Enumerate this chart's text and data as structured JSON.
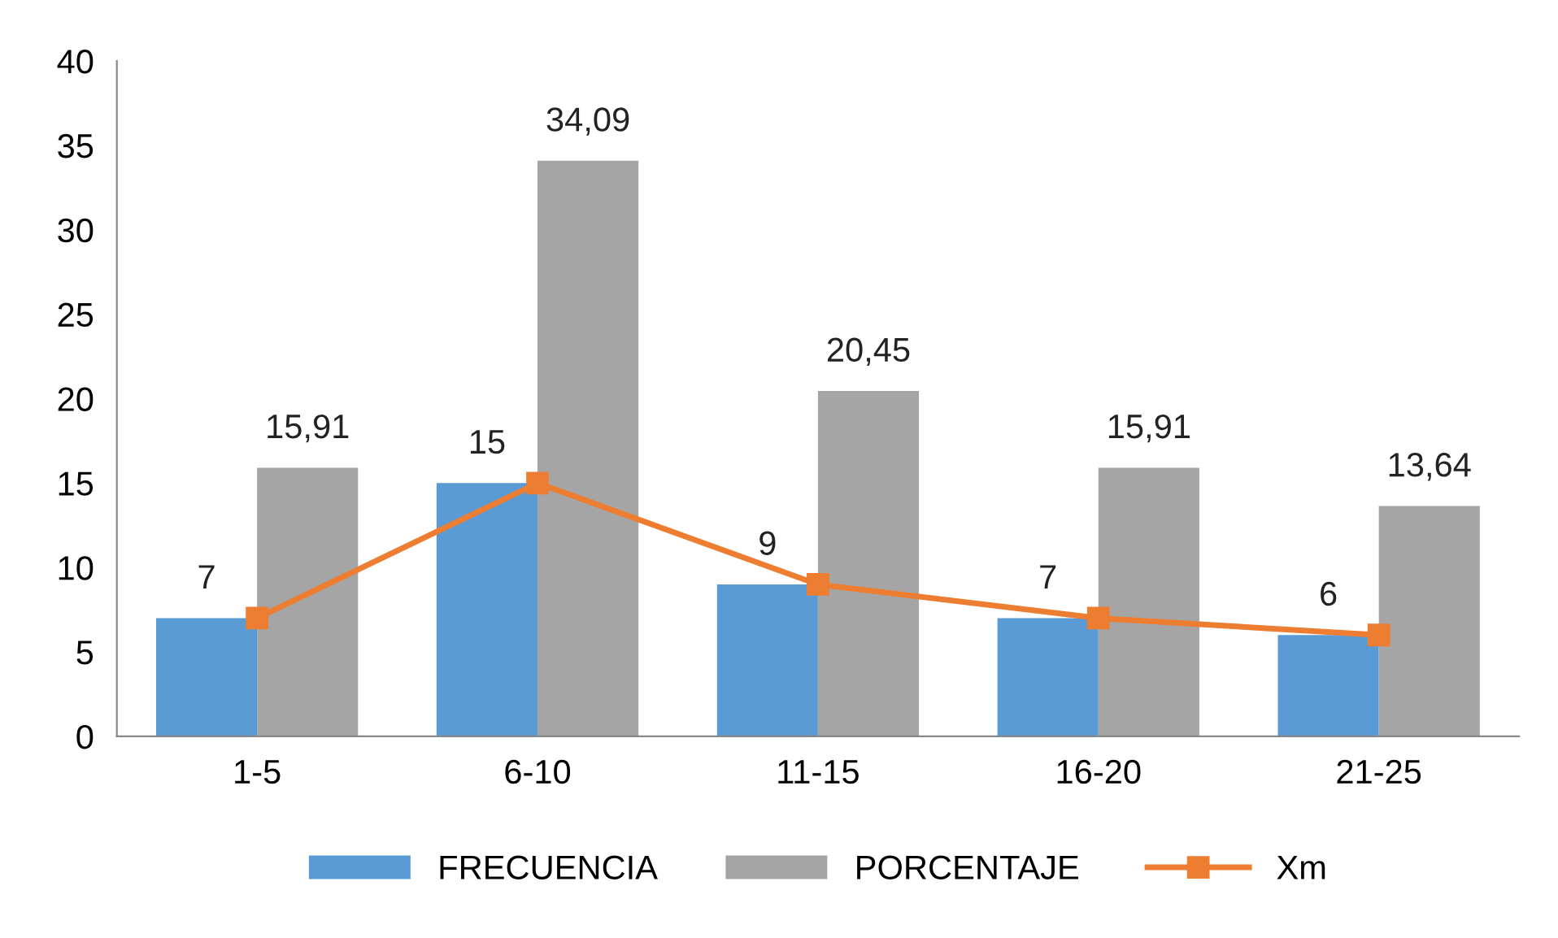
{
  "chart_data": {
    "type": "bar",
    "categories": [
      "1-5",
      "6-10",
      "11-15",
      "16-20",
      "21-25"
    ],
    "series": [
      {
        "name": "FRECUENCIA",
        "color": "#5b9bd5",
        "values": [
          7,
          15,
          9,
          7,
          6
        ],
        "value_labels": [
          "7",
          "15",
          "9",
          "7",
          "6"
        ]
      },
      {
        "name": "PORCENTAJE",
        "color": "#a5a5a5",
        "values": [
          15.91,
          34.09,
          20.45,
          15.91,
          13.64
        ],
        "value_labels": [
          "15,91",
          "34,09",
          "20,45",
          "15,91",
          "13,64"
        ]
      },
      {
        "name": "Xm",
        "type": "line",
        "color": "#ed7d31",
        "values": [
          7,
          15,
          9,
          7,
          6
        ],
        "marker": "square"
      }
    ],
    "ylim": [
      0,
      40
    ],
    "yticks": [
      0,
      5,
      10,
      15,
      20,
      25,
      30,
      35,
      40
    ],
    "grid": false,
    "legend": "bottom"
  }
}
